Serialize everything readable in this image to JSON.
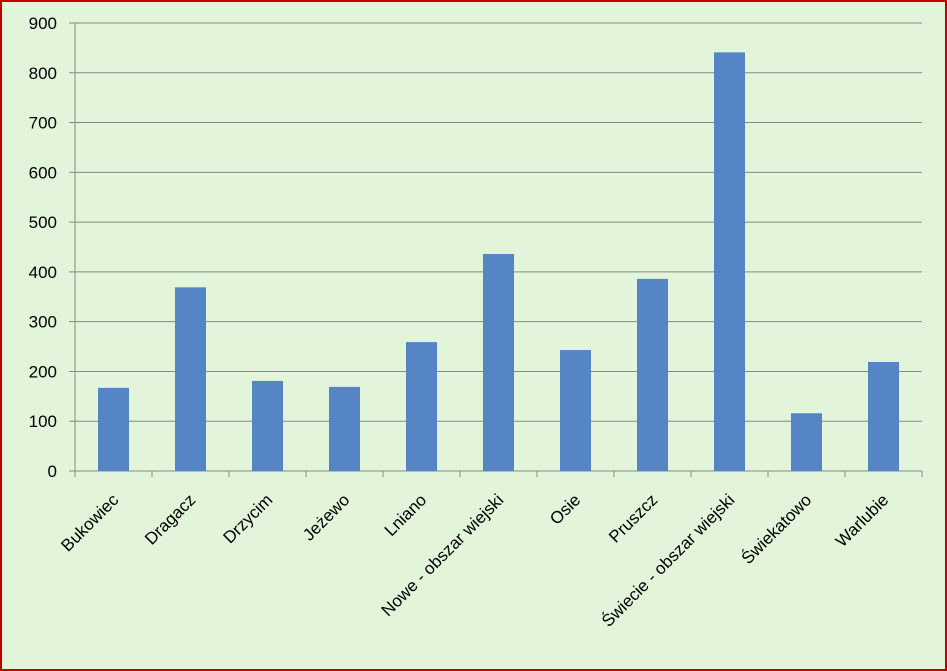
{
  "chart_data": {
    "type": "bar",
    "categories": [
      "Bukowiec",
      "Dragacz",
      "Drzycim",
      "Jeżewo",
      "Lniano",
      "Nowe - obszar wiejski",
      "Osie",
      "Pruszcz",
      "Świecie - obszar wiejski",
      "Świekatowo",
      "Warlubie"
    ],
    "values": [
      167,
      369,
      181,
      169,
      259,
      436,
      243,
      386,
      841,
      116,
      219
    ],
    "color": "#5585c5",
    "ylim": [
      0,
      900
    ],
    "yticks": [
      0,
      100,
      200,
      300,
      400,
      500,
      600,
      700,
      800,
      900
    ],
    "grid": true
  }
}
